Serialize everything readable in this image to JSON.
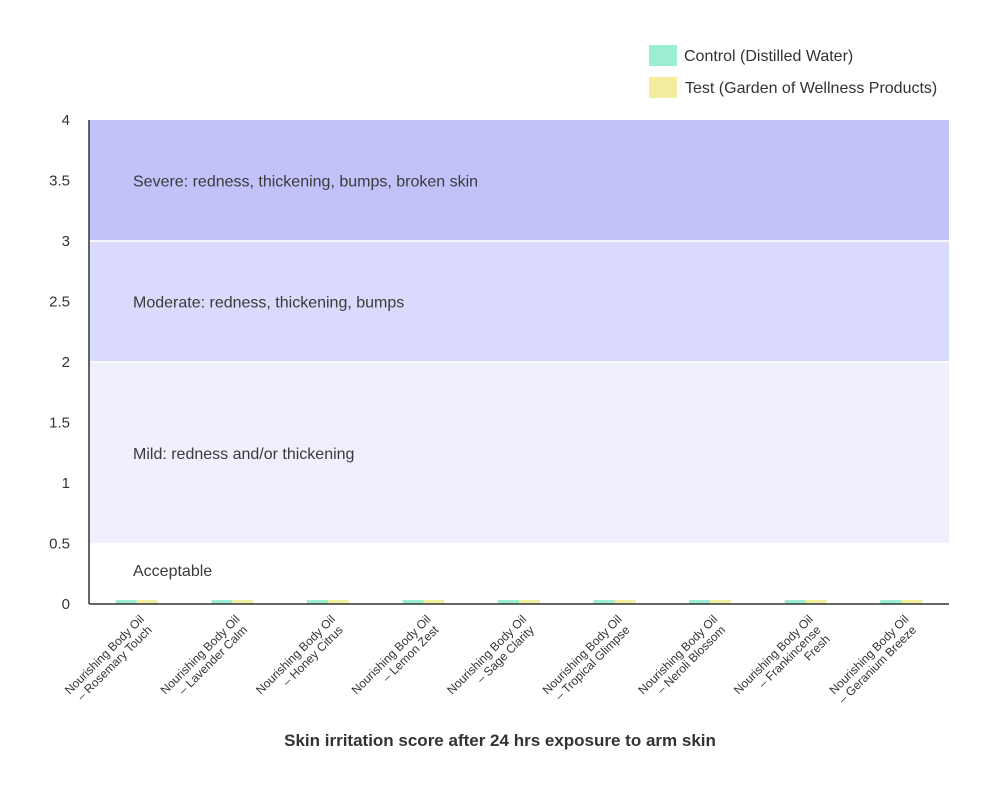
{
  "chart_data": {
    "type": "bar",
    "title": "Skin irritation score after 24 hrs exposure to arm skin",
    "xlabel": "",
    "ylabel": "",
    "ylim": [
      0,
      4
    ],
    "yticks": [
      "0",
      "0.5",
      "1",
      "1.5",
      "2",
      "2.5",
      "3",
      "3.5",
      "4"
    ],
    "categories": [
      [
        "Nourishing Body Oil",
        "– Rosemary Touch"
      ],
      [
        "Nourishing Body Oil",
        "– Lavender Calm"
      ],
      [
        "Nourishing Body Oil",
        "– Honey Citrus"
      ],
      [
        "Nourishing Body Oil",
        "– Lemon Zest"
      ],
      [
        "Nourishing Body Oil",
        "– Sage Clarity"
      ],
      [
        "Nourishing Body Oil",
        "– Tropical Glimpse"
      ],
      [
        "Nourishing Body Oil",
        "– Neroli Blossom"
      ],
      [
        "Nourishing Body Oil",
        "– Frankincense",
        "Fresh"
      ],
      [
        "Nourishing Body Oil",
        "– Geranium Breeze"
      ]
    ],
    "series": [
      {
        "name": "Control (Distilled Water)",
        "color": "#9ceed3",
        "values": [
          0,
          0,
          0,
          0,
          0,
          0,
          0,
          0,
          0
        ]
      },
      {
        "name": "Test (Garden of Wellness Products)",
        "color": "#f3ed9f",
        "values": [
          0,
          0,
          0,
          0,
          0,
          0,
          0,
          0,
          0
        ]
      }
    ],
    "bands": [
      {
        "label": "Acceptable",
        "from": 0,
        "to": 0.5,
        "color": "#ffffff"
      },
      {
        "label": "Mild: redness and/or thickening",
        "from": 0.5,
        "to": 2,
        "color": "#efeffd"
      },
      {
        "label": "Moderate: redness, thickening, bumps",
        "from": 2,
        "to": 3,
        "color": "#dadafd"
      },
      {
        "label": "Severe: redness, thickening, bumps, broken skin",
        "from": 3,
        "to": 4,
        "color": "#c2c2fb"
      }
    ],
    "legend_position": "top-right"
  }
}
